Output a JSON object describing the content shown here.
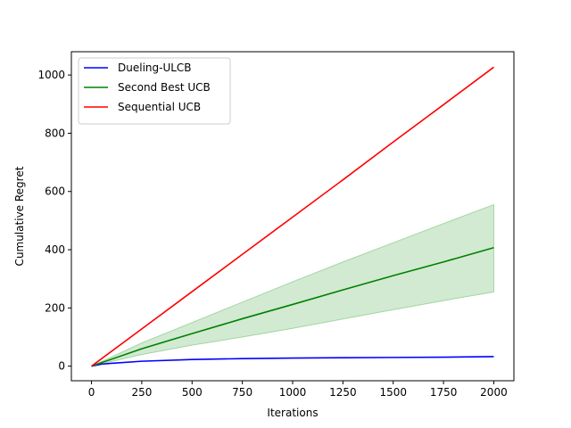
{
  "chart_data": {
    "type": "line",
    "title": "",
    "xlabel": "Iterations",
    "ylabel": "Cumulative Regret",
    "xlim": [
      -100,
      2100
    ],
    "ylim": [
      -50,
      1080
    ],
    "x_ticks": [
      0,
      250,
      500,
      750,
      1000,
      1250,
      1500,
      1750,
      2000
    ],
    "y_ticks": [
      0,
      200,
      400,
      600,
      800,
      1000
    ],
    "grid": false,
    "legend_position": "top-left",
    "series": [
      {
        "name": "Dueling-ULCB",
        "color": "#0000ff",
        "x": [
          0,
          50,
          100,
          250,
          500,
          750,
          1000,
          1250,
          1500,
          1750,
          2000
        ],
        "y": [
          0,
          7,
          10,
          17,
          23,
          26,
          28,
          29,
          30,
          31,
          33
        ]
      },
      {
        "name": "Second Best UCB",
        "color": "#008000",
        "x": [
          0,
          250,
          500,
          750,
          1000,
          1250,
          1500,
          1750,
          2000
        ],
        "y": [
          0,
          60,
          112,
          163,
          212,
          262,
          311,
          358,
          407
        ],
        "band_color": "#2ca02c",
        "band_lower": [
          0,
          40,
          72,
          100,
          130,
          162,
          194,
          225,
          255
        ],
        "band_upper": [
          0,
          80,
          150,
          220,
          290,
          358,
          424,
          490,
          555
        ]
      },
      {
        "name": "Sequential UCB",
        "color": "#ff0000",
        "x": [
          0,
          250,
          500,
          750,
          1000,
          1250,
          1500,
          1750,
          2000
        ],
        "y": [
          0,
          128,
          256,
          384,
          512,
          640,
          770,
          898,
          1027
        ]
      }
    ]
  }
}
